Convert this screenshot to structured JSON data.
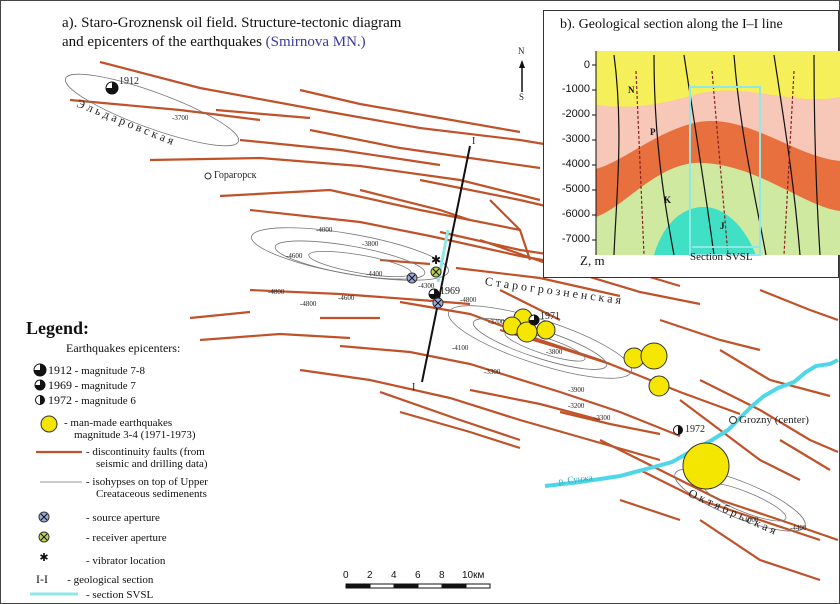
{
  "title_a": {
    "prefix": "a). Staro-Groznensk oil field. Structure-tectonic diagram",
    "line2": "and epicenters of the earthquakes",
    "author": "(Smirnova MN.)"
  },
  "title_b": "b). Geological section along the I–I line",
  "north": {
    "n": "N",
    "s": "S"
  },
  "map_labels": {
    "eldarovskaya": "Э л ь д а р о в с к а я",
    "staro": "С т а р о г р о з н е н с к а я",
    "oktyabr": "О к т я б р ь с к а я",
    "goragorsk": "Горагорск",
    "grozny": "Grozny (center)",
    "sunzha": "р. Сунжа",
    "eq1912": "1912",
    "eq1969": "1969",
    "eq1971": "1971",
    "eq1972": "1972",
    "section_I_top": "I",
    "section_I_bottom": "I"
  },
  "isohypses": [
    "-3700",
    "-4000",
    "-3800",
    "-4600",
    "-4400",
    "-4800",
    "-4800",
    "-4600",
    "-4300",
    "-4800",
    "-3700",
    "-4100",
    "-3800",
    "-3300",
    "-3900",
    "-3200",
    "-3300",
    "-4000",
    "-4400"
  ],
  "section_b": {
    "depth_ticks": [
      "0",
      "-1000",
      "-2000",
      "-3000",
      "-4000",
      "-5000",
      "-6000",
      "-7000"
    ],
    "layers": [
      "N",
      "P",
      "K",
      "J"
    ],
    "z_label": "Z, m",
    "svsl_label": "Section SVSL"
  },
  "legend": {
    "title": "Legend:",
    "subtitle": "Earthquakes epicenters:",
    "items": [
      {
        "code": "1912",
        "text": "- magnitude 7-8"
      },
      {
        "code": "1969",
        "text": "- magnitude 7"
      },
      {
        "code": "1972",
        "text": "- magnitude 6"
      },
      {
        "code": "",
        "text": "- man-made earthquakes"
      },
      {
        "code": "",
        "text": "magnitude 3-4 (1971-1973)"
      },
      {
        "code": "",
        "text": "- discontinuity faults (from"
      },
      {
        "code": "",
        "text": "seismic and drilling data)"
      },
      {
        "code": "",
        "text": "- isohypses on top of Upper"
      },
      {
        "code": "",
        "text": "Creataceous sedimenents"
      },
      {
        "code": "",
        "text": "- source aperture"
      },
      {
        "code": "",
        "text": "- receiver aperture"
      },
      {
        "code": "",
        "text": "- vibrator location"
      },
      {
        "code": "I-I",
        "text": "- geological section"
      },
      {
        "code": "",
        "text": "- section SVSL"
      }
    ]
  },
  "scale": {
    "ticks": [
      "0",
      "2",
      "4",
      "6",
      "8",
      "10км"
    ]
  },
  "colors": {
    "fault": "#c0522a",
    "river": "#4fd6e8",
    "quake": "#f5e600",
    "svsl": "#8ee8e8"
  }
}
